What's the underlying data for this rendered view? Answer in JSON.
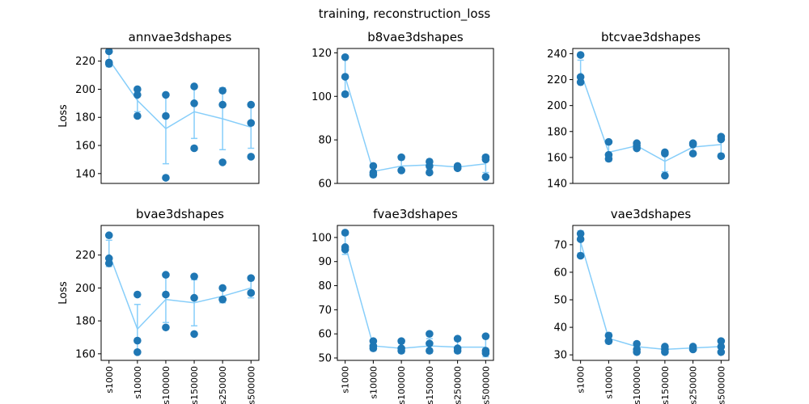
{
  "figure": {
    "title": "training, reconstruction_loss"
  },
  "colors": {
    "mean_line": "#87cefa",
    "points": "#1f77b4",
    "frame": "#000000"
  },
  "chart_data": [
    {
      "type": "scatter",
      "title": "annvae3dshapes",
      "ylabel": "Loss",
      "xlabel": "",
      "categories": [
        "s1000",
        "s10000",
        "s100000",
        "s150000",
        "s250000",
        "s500000"
      ],
      "show_xticklabels": false,
      "ylim": [
        133,
        229
      ],
      "yticks": [
        140,
        160,
        180,
        200,
        220
      ],
      "points": [
        [
          227,
          219,
          218
        ],
        [
          200,
          196,
          181
        ],
        [
          196,
          181,
          137
        ],
        [
          202,
          190,
          158
        ],
        [
          199,
          189,
          148
        ],
        [
          189,
          176,
          152
        ]
      ],
      "mean": [
        221,
        192,
        172,
        184,
        179,
        173
      ],
      "error": [
        5,
        8,
        25,
        19,
        22,
        15
      ]
    },
    {
      "type": "scatter",
      "title": "b8vae3dshapes",
      "ylabel": "",
      "xlabel": "",
      "categories": [
        "s1000",
        "s10000",
        "s100000",
        "s150000",
        "s250000",
        "s500000"
      ],
      "show_xticklabels": false,
      "ylim": [
        60,
        122
      ],
      "yticks": [
        60,
        80,
        100,
        120
      ],
      "points": [
        [
          118,
          109,
          101
        ],
        [
          68,
          65,
          64
        ],
        [
          72,
          66,
          66
        ],
        [
          70,
          68,
          65
        ],
        [
          68,
          67,
          67
        ],
        [
          72,
          71,
          63
        ]
      ],
      "mean": [
        109,
        65.5,
        68,
        68.5,
        67.5,
        69
      ],
      "error": [
        9,
        2.5,
        3,
        2,
        1,
        4
      ]
    },
    {
      "type": "scatter",
      "title": "btcvae3dshapes",
      "ylabel": "",
      "xlabel": "",
      "categories": [
        "s1000",
        "s10000",
        "s100000",
        "s150000",
        "s250000",
        "s500000"
      ],
      "show_xticklabels": false,
      "ylim": [
        140,
        244
      ],
      "yticks": [
        140,
        160,
        180,
        200,
        220,
        240
      ],
      "points": [
        [
          239,
          222,
          218
        ],
        [
          172,
          162,
          159
        ],
        [
          171,
          169,
          167
        ],
        [
          164,
          163,
          146
        ],
        [
          171,
          170,
          163
        ],
        [
          176,
          174,
          161
        ]
      ],
      "mean": [
        226,
        164,
        169,
        157,
        168,
        170
      ],
      "error": [
        9,
        7,
        2,
        8,
        4,
        7
      ]
    },
    {
      "type": "scatter",
      "title": "bvae3dshapes",
      "ylabel": "Loss",
      "xlabel": "",
      "categories": [
        "s1000",
        "s10000",
        "s100000",
        "s150000",
        "s250000",
        "s500000"
      ],
      "show_xticklabels": true,
      "ylim": [
        156,
        238
      ],
      "yticks": [
        160,
        180,
        200,
        220
      ],
      "points": [
        [
          232,
          218,
          215
        ],
        [
          196,
          168,
          161
        ],
        [
          208,
          196,
          176
        ],
        [
          207,
          194,
          172
        ],
        [
          200,
          193,
          193
        ],
        [
          206,
          197,
          197
        ]
      ],
      "mean": [
        221,
        175,
        193,
        191,
        195,
        200
      ],
      "error": [
        8,
        15,
        14,
        14,
        4,
        6
      ]
    },
    {
      "type": "scatter",
      "title": "fvae3dshapes",
      "ylabel": "",
      "xlabel": "",
      "categories": [
        "s1000",
        "s10000",
        "s100000",
        "s150000",
        "s250000",
        "s500000"
      ],
      "show_xticklabels": true,
      "ylim": [
        49,
        105
      ],
      "yticks": [
        50,
        60,
        70,
        80,
        90,
        100
      ],
      "points": [
        [
          102,
          96,
          95
        ],
        [
          57,
          55,
          54
        ],
        [
          57,
          54,
          53
        ],
        [
          60,
          56,
          53
        ],
        [
          58,
          54,
          53
        ],
        [
          59,
          53,
          52
        ]
      ],
      "mean": [
        97,
        55,
        54,
        55,
        54.5,
        54.5
      ],
      "error": [
        4,
        2,
        2,
        3,
        2.5,
        4
      ]
    },
    {
      "type": "scatter",
      "title": "vae3dshapes",
      "ylabel": "",
      "xlabel": "",
      "categories": [
        "s1000",
        "s10000",
        "s100000",
        "s150000",
        "s250000",
        "s500000"
      ],
      "show_xticklabels": true,
      "ylim": [
        28,
        77
      ],
      "yticks": [
        30,
        40,
        50,
        60,
        70
      ],
      "points": [
        [
          74,
          72,
          66
        ],
        [
          37,
          35,
          35
        ],
        [
          34,
          32,
          31
        ],
        [
          33,
          32,
          31
        ],
        [
          33,
          32,
          32
        ],
        [
          35,
          33,
          31
        ]
      ],
      "mean": [
        71,
        36,
        33,
        32,
        32.5,
        33
      ],
      "error": [
        4,
        2,
        1.5,
        1,
        1,
        2
      ]
    }
  ]
}
